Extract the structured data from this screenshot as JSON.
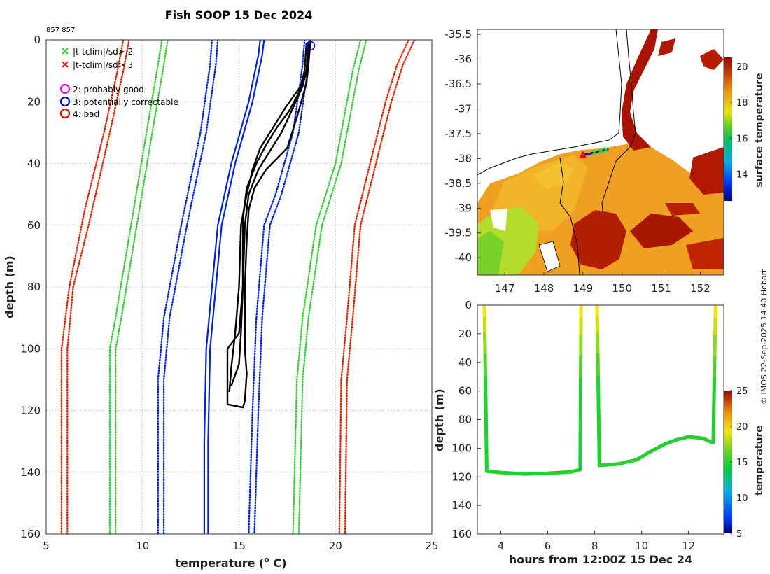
{
  "header": {
    "title": "Fish SOOP 15 Dec 2024",
    "id_label": "857 857",
    "credit": "© IMOS 22-Sep-2025 14:40 Hobart"
  },
  "legend": {
    "green_x": "|t-tclim|/sd> 2",
    "red_x": "|t-tclim|/sd> 3",
    "magenta_o": "2: probably good",
    "blue_o": "3: potentially correctable",
    "red_o": "4: bad"
  },
  "colors": {
    "profile": "#000000",
    "clim_blue": "#0022dd",
    "clim_green": "#33cc33",
    "clim_red": "#dd2200",
    "flag_magenta": "#dd11dd",
    "flag_blue": "#0000ee",
    "flag_red": "#ee0000"
  },
  "chart_data": [
    {
      "type": "line",
      "name": "profile",
      "xlabel": "temperature (",
      "xlabel_sup": "o",
      "xlabel_unit": " C)",
      "ylabel": "depth (m)",
      "xlim": [
        5,
        25
      ],
      "ylim": [
        160,
        0
      ],
      "xticks": [
        5,
        10,
        15,
        20,
        25
      ],
      "yticks": [
        0,
        20,
        40,
        60,
        80,
        100,
        120,
        140,
        160
      ],
      "grid": true,
      "series": [
        {
          "name": "clim_red_left",
          "style": "dotted",
          "color": "red",
          "points": [
            [
              9.0,
              0
            ],
            [
              8.7,
              10
            ],
            [
              8.0,
              30
            ],
            [
              7.0,
              55
            ],
            [
              6.2,
              80
            ],
            [
              5.8,
              100
            ],
            [
              5.8,
              160
            ]
          ]
        },
        {
          "name": "clim_red_left2",
          "style": "dotted",
          "color": "red",
          "points": [
            [
              9.3,
              0
            ],
            [
              9.0,
              10
            ],
            [
              8.3,
              30
            ],
            [
              7.2,
              60
            ],
            [
              6.4,
              80
            ],
            [
              6.1,
              100
            ],
            [
              6.1,
              160
            ]
          ]
        },
        {
          "name": "clim_green_left",
          "style": "dotted",
          "color": "green",
          "points": [
            [
              11.0,
              0
            ],
            [
              10.8,
              8
            ],
            [
              10.2,
              30
            ],
            [
              9.4,
              60
            ],
            [
              8.6,
              90
            ],
            [
              8.3,
              100
            ],
            [
              8.3,
              160
            ]
          ]
        },
        {
          "name": "clim_green_left2",
          "style": "dotted",
          "color": "green",
          "points": [
            [
              11.3,
              0
            ],
            [
              11.1,
              8
            ],
            [
              10.5,
              30
            ],
            [
              9.7,
              60
            ],
            [
              8.9,
              90
            ],
            [
              8.6,
              100
            ],
            [
              8.6,
              160
            ]
          ]
        },
        {
          "name": "clim_blue_left",
          "style": "dotted",
          "color": "blue",
          "points": [
            [
              13.6,
              0
            ],
            [
              13.5,
              8
            ],
            [
              13.0,
              30
            ],
            [
              12.0,
              60
            ],
            [
              11.1,
              90
            ],
            [
              10.8,
              110
            ],
            [
              10.8,
              160
            ]
          ]
        },
        {
          "name": "clim_blue_left2",
          "style": "dotted",
          "color": "blue",
          "points": [
            [
              13.9,
              0
            ],
            [
              13.8,
              8
            ],
            [
              13.3,
              30
            ],
            [
              12.3,
              60
            ],
            [
              11.4,
              90
            ],
            [
              11.1,
              110
            ],
            [
              11.1,
              160
            ]
          ]
        },
        {
          "name": "clim_mean",
          "style": "solid",
          "color": "blue",
          "points": [
            [
              16.1,
              0
            ],
            [
              16.0,
              5
            ],
            [
              15.5,
              20
            ],
            [
              14.6,
              40
            ],
            [
              13.9,
              60
            ],
            [
              13.6,
              80
            ],
            [
              13.3,
              100
            ],
            [
              13.2,
              130
            ],
            [
              13.2,
              160
            ]
          ]
        },
        {
          "name": "clim_mean2",
          "style": "solid",
          "color": "blue",
          "points": [
            [
              16.3,
              0
            ],
            [
              16.2,
              5
            ],
            [
              15.7,
              20
            ],
            [
              14.8,
              40
            ],
            [
              14.1,
              60
            ],
            [
              13.8,
              80
            ],
            [
              13.5,
              100
            ],
            [
              13.4,
              130
            ],
            [
              13.4,
              160
            ]
          ]
        },
        {
          "name": "clim_blue_right",
          "style": "dotted",
          "color": "blue",
          "points": [
            [
              18.4,
              0
            ],
            [
              18.3,
              8
            ],
            [
              17.8,
              30
            ],
            [
              16.9,
              50
            ],
            [
              16.3,
              60
            ],
            [
              15.9,
              90
            ],
            [
              15.7,
              120
            ],
            [
              15.5,
              160
            ]
          ]
        },
        {
          "name": "clim_blue_right2",
          "style": "dotted",
          "color": "blue",
          "points": [
            [
              18.7,
              0
            ],
            [
              18.6,
              8
            ],
            [
              18.1,
              30
            ],
            [
              17.2,
              50
            ],
            [
              16.6,
              60
            ],
            [
              16.2,
              90
            ],
            [
              16.0,
              120
            ],
            [
              15.8,
              160
            ]
          ]
        },
        {
          "name": "clim_green_right",
          "style": "dotted",
          "color": "green",
          "points": [
            [
              21.3,
              0
            ],
            [
              20.9,
              10
            ],
            [
              20.0,
              40
            ],
            [
              19.0,
              60
            ],
            [
              18.3,
              90
            ],
            [
              18.0,
              110
            ],
            [
              17.8,
              160
            ]
          ]
        },
        {
          "name": "clim_green_right2",
          "style": "dotted",
          "color": "green",
          "points": [
            [
              21.6,
              0
            ],
            [
              21.2,
              10
            ],
            [
              20.3,
              40
            ],
            [
              19.3,
              60
            ],
            [
              18.6,
              90
            ],
            [
              18.3,
              110
            ],
            [
              18.1,
              160
            ]
          ]
        },
        {
          "name": "clim_red_right",
          "style": "dotted",
          "color": "red",
          "points": [
            [
              23.8,
              0
            ],
            [
              23.2,
              8
            ],
            [
              22.6,
              20
            ],
            [
              21.8,
              40
            ],
            [
              21.0,
              60
            ],
            [
              20.6,
              90
            ],
            [
              20.3,
              110
            ],
            [
              20.2,
              160
            ]
          ]
        },
        {
          "name": "clim_red_right2",
          "style": "dotted",
          "color": "red",
          "points": [
            [
              24.1,
              0
            ],
            [
              23.5,
              8
            ],
            [
              22.9,
              20
            ],
            [
              22.1,
              40
            ],
            [
              21.3,
              60
            ],
            [
              20.9,
              90
            ],
            [
              20.6,
              110
            ],
            [
              20.5,
              160
            ]
          ]
        },
        {
          "name": "cast_1",
          "style": "solid",
          "color": "black",
          "points": [
            [
              18.5,
              1
            ],
            [
              18.4,
              10
            ],
            [
              18.2,
              15
            ],
            [
              17.4,
              22
            ],
            [
              16.8,
              28
            ],
            [
              16.1,
              35
            ],
            [
              15.7,
              42
            ],
            [
              15.4,
              50
            ],
            [
              15.1,
              60
            ],
            [
              15.0,
              80
            ],
            [
              14.8,
              95
            ],
            [
              14.6,
              106
            ],
            [
              14.5,
              114
            ]
          ]
        },
        {
          "name": "cast_2",
          "style": "solid",
          "color": "black",
          "points": [
            [
              18.6,
              1
            ],
            [
              18.5,
              10
            ],
            [
              18.3,
              15
            ],
            [
              17.8,
              22
            ],
            [
              17.2,
              30
            ],
            [
              16.6,
              36
            ],
            [
              16.0,
              42
            ],
            [
              15.5,
              50
            ],
            [
              15.3,
              60
            ],
            [
              15.2,
              80
            ],
            [
              15.1,
              95
            ],
            [
              15.0,
              105
            ],
            [
              14.6,
              112
            ]
          ]
        },
        {
          "name": "cast_3",
          "style": "solid",
          "color": "black",
          "points": [
            [
              18.6,
              1
            ],
            [
              18.5,
              10
            ],
            [
              18.2,
              16
            ],
            [
              17.6,
              23
            ],
            [
              17.0,
              28
            ],
            [
              16.4,
              34
            ],
            [
              15.9,
              40
            ],
            [
              15.4,
              48
            ],
            [
              15.2,
              58
            ],
            [
              15.2,
              80
            ],
            [
              15.0,
              95
            ],
            [
              14.4,
              100
            ],
            [
              14.4,
              118
            ],
            [
              15.2,
              119
            ],
            [
              15.3,
              117
            ]
          ]
        },
        {
          "name": "cast_4",
          "style": "solid",
          "color": "black",
          "points": [
            [
              18.7,
              1
            ],
            [
              18.6,
              8
            ],
            [
              18.5,
              14
            ],
            [
              18.0,
              25
            ],
            [
              17.5,
              35
            ],
            [
              16.4,
              42
            ],
            [
              15.8,
              48
            ],
            [
              15.5,
              55
            ],
            [
              15.4,
              65
            ],
            [
              15.3,
              80
            ],
            [
              15.3,
              100
            ],
            [
              15.4,
              108
            ],
            [
              15.3,
              117
            ]
          ]
        }
      ],
      "flag_markers": [
        {
          "flag": "3: potentially correctable",
          "x": 18.7,
          "y": 1
        }
      ]
    },
    {
      "type": "heatmap",
      "name": "sst_map",
      "xlim": [
        146.3,
        152.6
      ],
      "ylim": [
        -40.35,
        -35.4
      ],
      "xticks": [
        147,
        148,
        149,
        150,
        151,
        152
      ],
      "yticks": [
        -35.5,
        -36,
        -36.5,
        -37,
        -37.5,
        -38,
        -38.5,
        -39,
        -39.5,
        -40
      ],
      "xtick_labels": [
        "147",
        "148",
        "149",
        "150",
        "151",
        "152"
      ],
      "ytick_labels": [
        "-35.5",
        "-36",
        "-36.5",
        "-37",
        "-37.5",
        "-38",
        "-38.5",
        "-39",
        "-39.5",
        "-40"
      ],
      "colorbar_label": "surface temperature",
      "colorbar_ticks": [
        "20",
        "18",
        "16",
        "14"
      ],
      "colorbar_range": [
        12.5,
        20.5
      ],
      "track": [
        [
          149.0,
          -37.93
        ],
        [
          149.3,
          -37.88
        ],
        [
          149.55,
          -37.83
        ],
        [
          149.65,
          -37.81
        ]
      ]
    },
    {
      "type": "scatter",
      "name": "section",
      "xlabel": "hours from 12:00Z 15 Dec 24",
      "ylabel": "depth (m)",
      "xlim": [
        3.0,
        13.5
      ],
      "ylim": [
        160,
        0
      ],
      "xticks": [
        4,
        6,
        8,
        10,
        12
      ],
      "yticks": [
        0,
        20,
        40,
        60,
        80,
        100,
        120,
        140,
        160
      ],
      "colorbar_label": "temperature",
      "colorbar_ticks": [
        "25",
        "20",
        "15",
        "10",
        "5"
      ],
      "colorbar_range": [
        5,
        25
      ],
      "casts": [
        {
          "name": "cast_a",
          "down": [
            [
              3.3,
              0
            ],
            [
              3.4,
              116
            ]
          ],
          "bottom": [
            [
              3.4,
              116
            ],
            [
              4.0,
              117
            ],
            [
              5.0,
              118
            ],
            [
              6.0,
              117.5
            ],
            [
              7.0,
              116.5
            ],
            [
              7.35,
              115
            ]
          ],
          "up": [
            [
              7.38,
              115
            ],
            [
              7.42,
              0
            ]
          ]
        },
        {
          "name": "cast_b",
          "down": [
            [
              8.1,
              0
            ],
            [
              8.2,
              112
            ]
          ],
          "bottom": [
            [
              8.2,
              112
            ],
            [
              9.0,
              111
            ],
            [
              9.8,
              108
            ],
            [
              10.3,
              103
            ],
            [
              11.0,
              97
            ],
            [
              11.5,
              94
            ],
            [
              12.0,
              92
            ],
            [
              12.6,
              93
            ],
            [
              13.0,
              96
            ]
          ],
          "up": [
            [
              13.05,
              96
            ],
            [
              13.15,
              0
            ]
          ]
        }
      ]
    }
  ]
}
